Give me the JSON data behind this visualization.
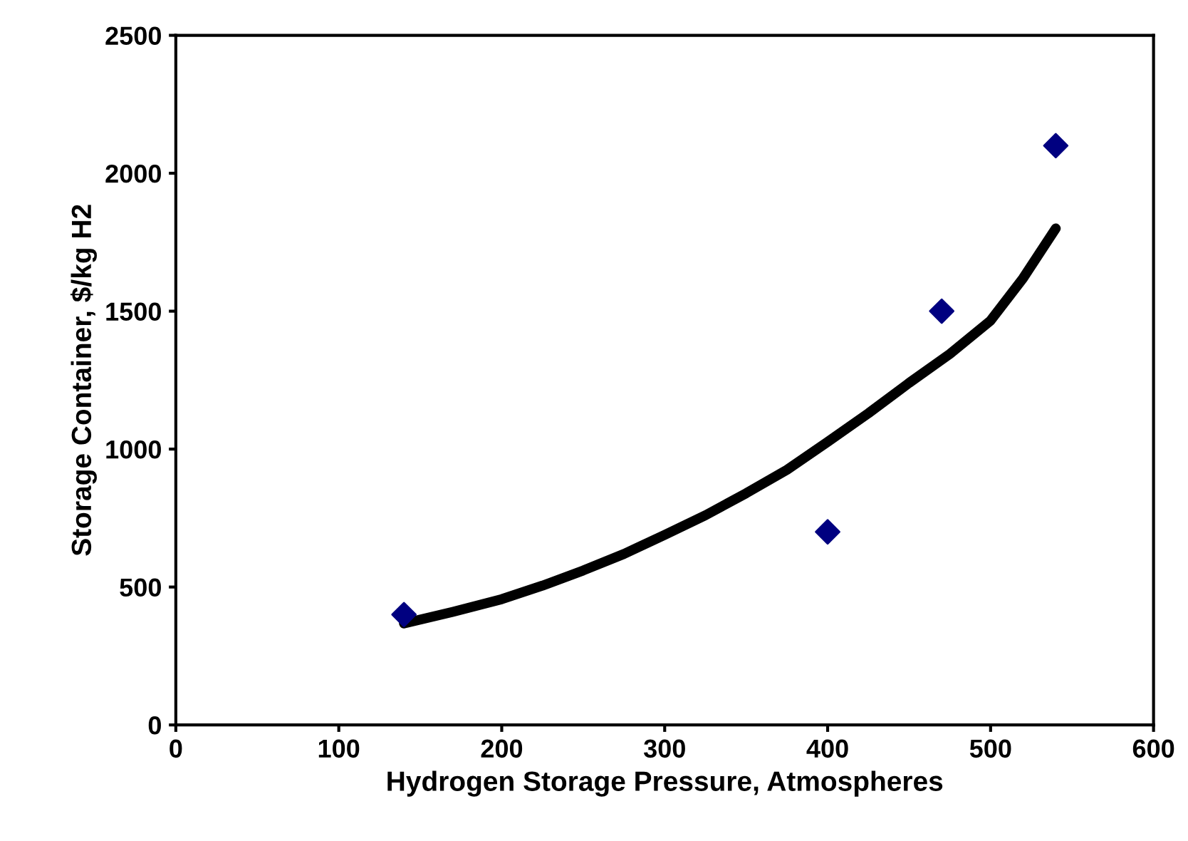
{
  "chart_data": {
    "type": "scatter",
    "xlabel": "Hydrogen Storage Pressure, Atmospheres",
    "ylabel": "Storage Container, $/kg H2",
    "xlim": [
      0,
      600
    ],
    "xticks": [
      0,
      100,
      200,
      300,
      400,
      500,
      600
    ],
    "ylim": [
      0,
      2500
    ],
    "yticks": [
      0,
      500,
      1000,
      1500,
      2000,
      2500
    ],
    "grid": false,
    "legend": false,
    "series": [
      {
        "color": "#000080",
        "marker": "diamond",
        "x": [
          140,
          400,
          470,
          540
        ],
        "values": [
          400,
          700,
          1500,
          2100
        ]
      },
      {
        "type": "line",
        "color": "#000000",
        "marker": "none",
        "line_style": "solid",
        "x": [
          140,
          170,
          200,
          225,
          250,
          275,
          300,
          325,
          350,
          375,
          400,
          425,
          450,
          475,
          500,
          520,
          540
        ],
        "values": [
          368,
          410,
          456,
          505,
          560,
          620,
          689,
          760,
          840,
          925,
          1026,
          1130,
          1240,
          1345,
          1466,
          1620,
          1800
        ]
      }
    ]
  }
}
